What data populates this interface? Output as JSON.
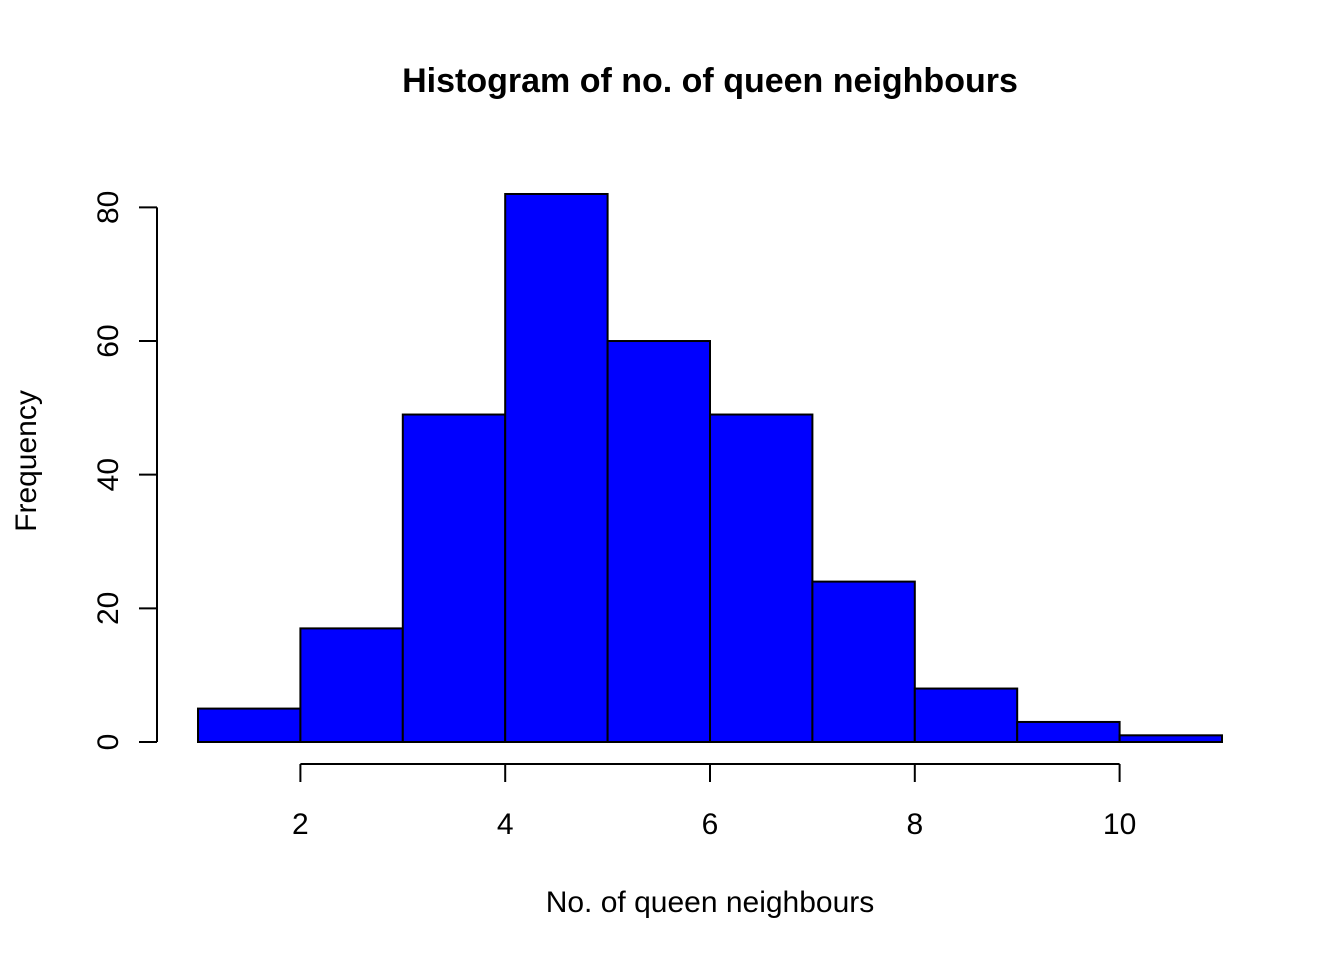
{
  "chart_data": {
    "type": "bar",
    "title": "Histogram of no. of queen neighbours",
    "xlabel": "No. of queen neighbours",
    "ylabel": "Frequency",
    "bin_edges": [
      1,
      2,
      3,
      4,
      5,
      6,
      7,
      8,
      9,
      10,
      11
    ],
    "categories": [
      "1-2",
      "2-3",
      "3-4",
      "4-5",
      "5-6",
      "6-7",
      "7-8",
      "8-9",
      "9-10",
      "10-11"
    ],
    "values": [
      5,
      17,
      49,
      82,
      60,
      49,
      24,
      8,
      3,
      1
    ],
    "bar_color": "#0000FF",
    "xticks": [
      2,
      4,
      6,
      8,
      10
    ],
    "yticks": [
      0,
      20,
      40,
      60,
      80
    ],
    "xlim": [
      1,
      11
    ],
    "ylim": [
      0,
      82
    ],
    "grid": false,
    "legend": "none"
  }
}
